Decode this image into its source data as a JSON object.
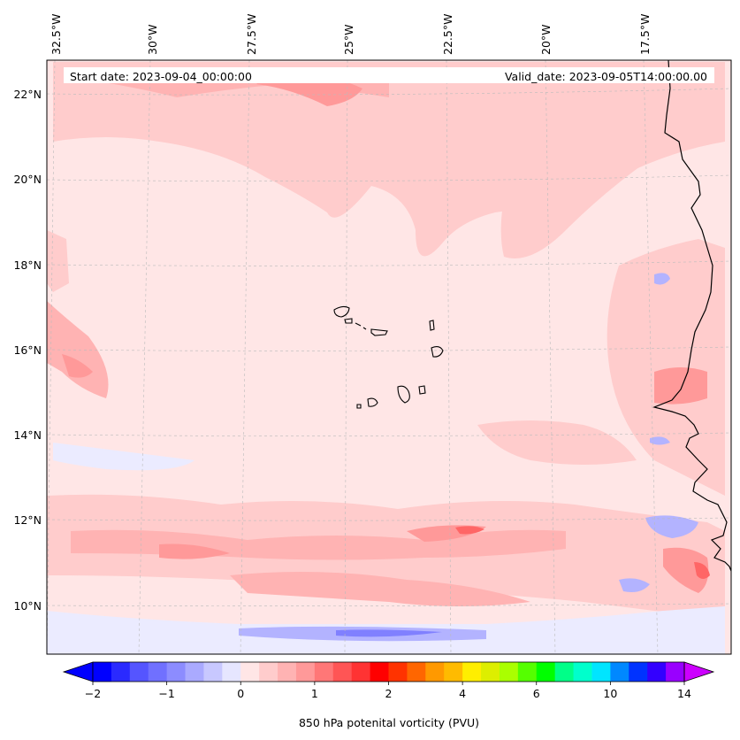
{
  "map": {
    "start_date": "Start date: 2023-09-04_00:00:00",
    "valid_date": "Valid_date: 2023-09-05T14:00:00.00",
    "top_ticks": [
      "32.5°W",
      "30°W",
      "27.5°W",
      "25°W",
      "22.5°W",
      "20°W",
      "17.5°W"
    ],
    "lat_ticks": [
      "22°N",
      "20°N",
      "18°N",
      "16°N",
      "14°N",
      "12°N",
      "10°N"
    ],
    "background_color": "#ffe6e6",
    "field_colors": {
      "light_pink": "#ffcccc",
      "pink": "#ffb3b3",
      "salmon": "#ff9999",
      "red": "#ff6666",
      "light_blue": "#ebebff",
      "blue": "#b3b3ff",
      "mid_blue": "#8080ff"
    }
  },
  "colorbar": {
    "label": "850 hPa potenital vorticity (PVU)",
    "tick_labels": [
      "−2",
      "−1",
      "0",
      "1",
      "2",
      "4",
      "6",
      "10",
      "14"
    ],
    "colors": [
      "#0000ff",
      "#2a2aff",
      "#5555ff",
      "#7070ff",
      "#8c8cff",
      "#aaaaff",
      "#c8c8ff",
      "#e6e6ff",
      "#ffe6e6",
      "#ffcccc",
      "#ffb3b3",
      "#ff9999",
      "#ff7777",
      "#ff5555",
      "#ff3333",
      "#ff0000",
      "#ff3300",
      "#ff6600",
      "#ff9900",
      "#ffbb00",
      "#ffee00",
      "#ddee00",
      "#aaff00",
      "#55ff00",
      "#00ff00",
      "#00ff88",
      "#00ffcc",
      "#00e5ff",
      "#0088ff",
      "#0033ff",
      "#3300ff",
      "#9900ff"
    ],
    "extend_low": "#0000ff",
    "extend_high": "#cc00ff"
  }
}
